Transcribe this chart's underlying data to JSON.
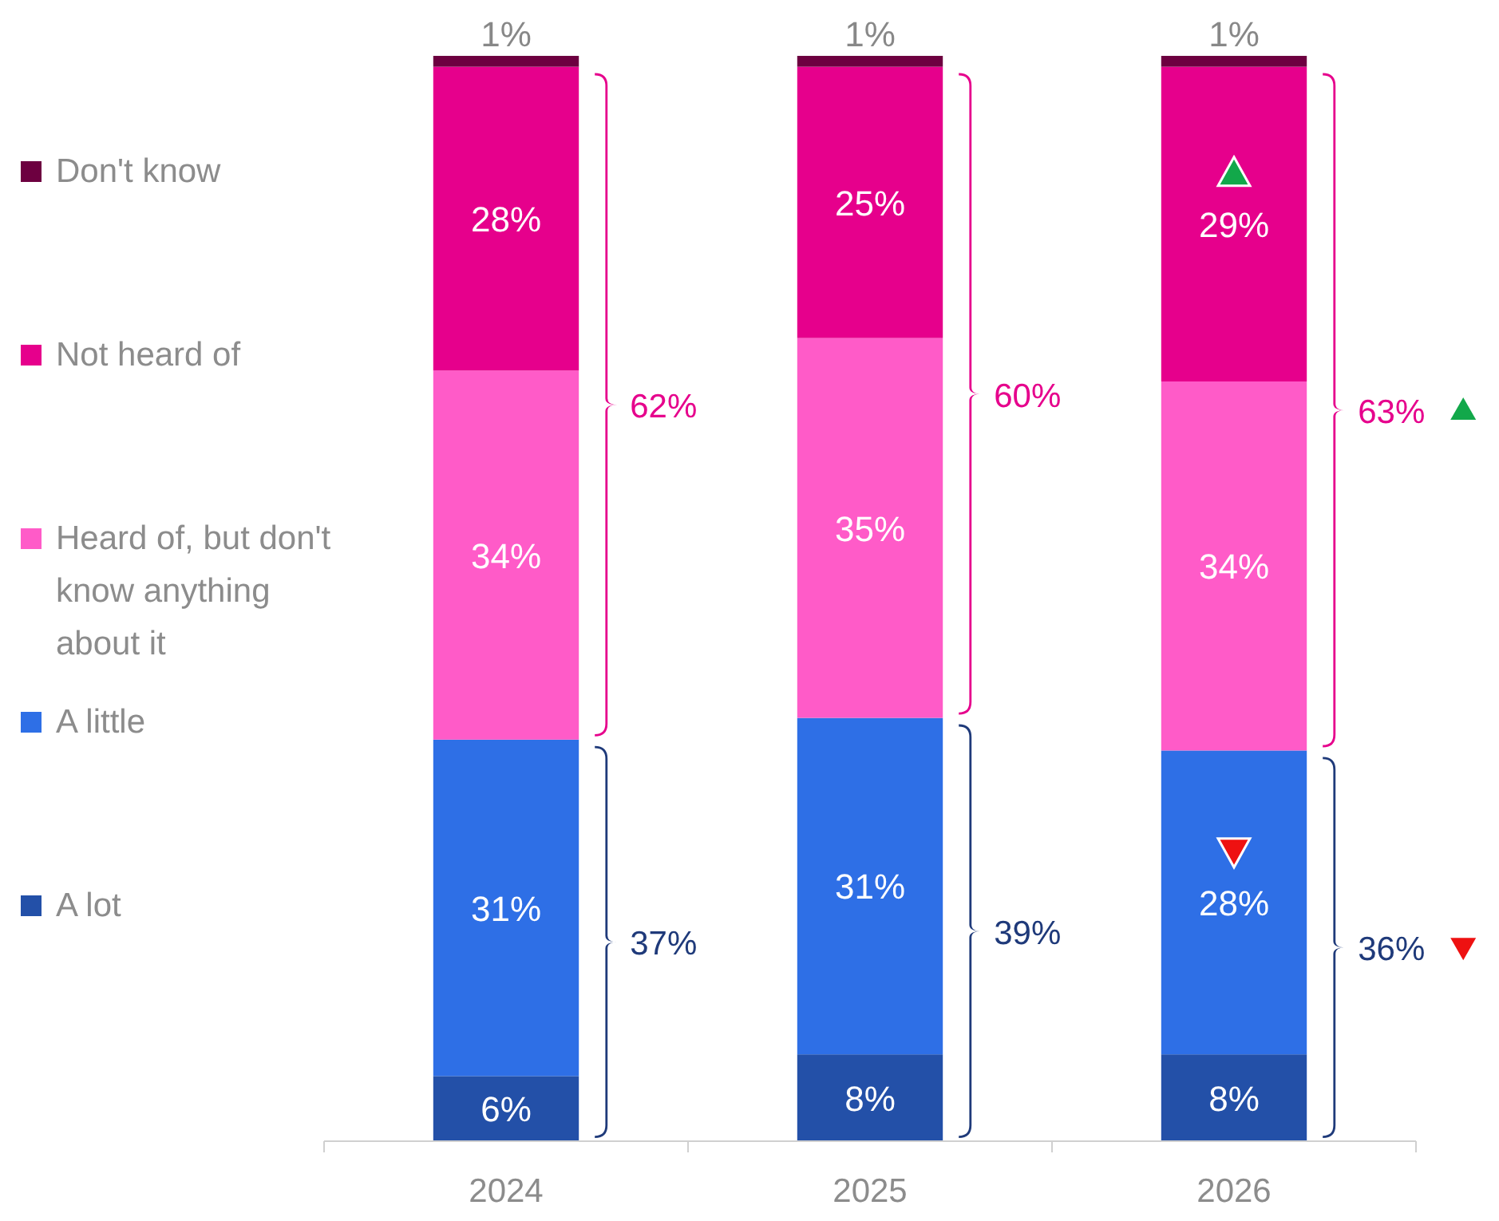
{
  "chart_data": {
    "type": "bar",
    "stacked": true,
    "categories": [
      "2024",
      "2025",
      "2026"
    ],
    "ylim": [
      0,
      100
    ],
    "tick_labels": "x",
    "legend": "left",
    "series": [
      {
        "name": "A lot",
        "color": "#2350a8",
        "values": [
          6,
          8,
          8
        ],
        "value_labels": [
          "6%",
          "8%",
          "8%"
        ]
      },
      {
        "name": "A little",
        "color": "#2e6fe6",
        "values": [
          31,
          31,
          28
        ],
        "value_labels": [
          "31%",
          "31%",
          "28%"
        ]
      },
      {
        "name": "Heard of, but don't know anything about it",
        "color": "#ff5bc8",
        "values": [
          34,
          35,
          34
        ],
        "value_labels": [
          "34%",
          "35%",
          "34%"
        ]
      },
      {
        "name": "Not heard of",
        "color": "#e6008c",
        "values": [
          28,
          25,
          29
        ],
        "value_labels": [
          "28%",
          "25%",
          "29%"
        ]
      },
      {
        "name": "Don't know",
        "color": "#6d0040",
        "values": [
          1,
          1,
          1
        ],
        "value_labels": [
          "1%",
          "1%",
          "1%"
        ]
      }
    ],
    "annotations": [
      "37%",
      "62%",
      "39%",
      "60%",
      "36%",
      "63%"
    ]
  }
}
